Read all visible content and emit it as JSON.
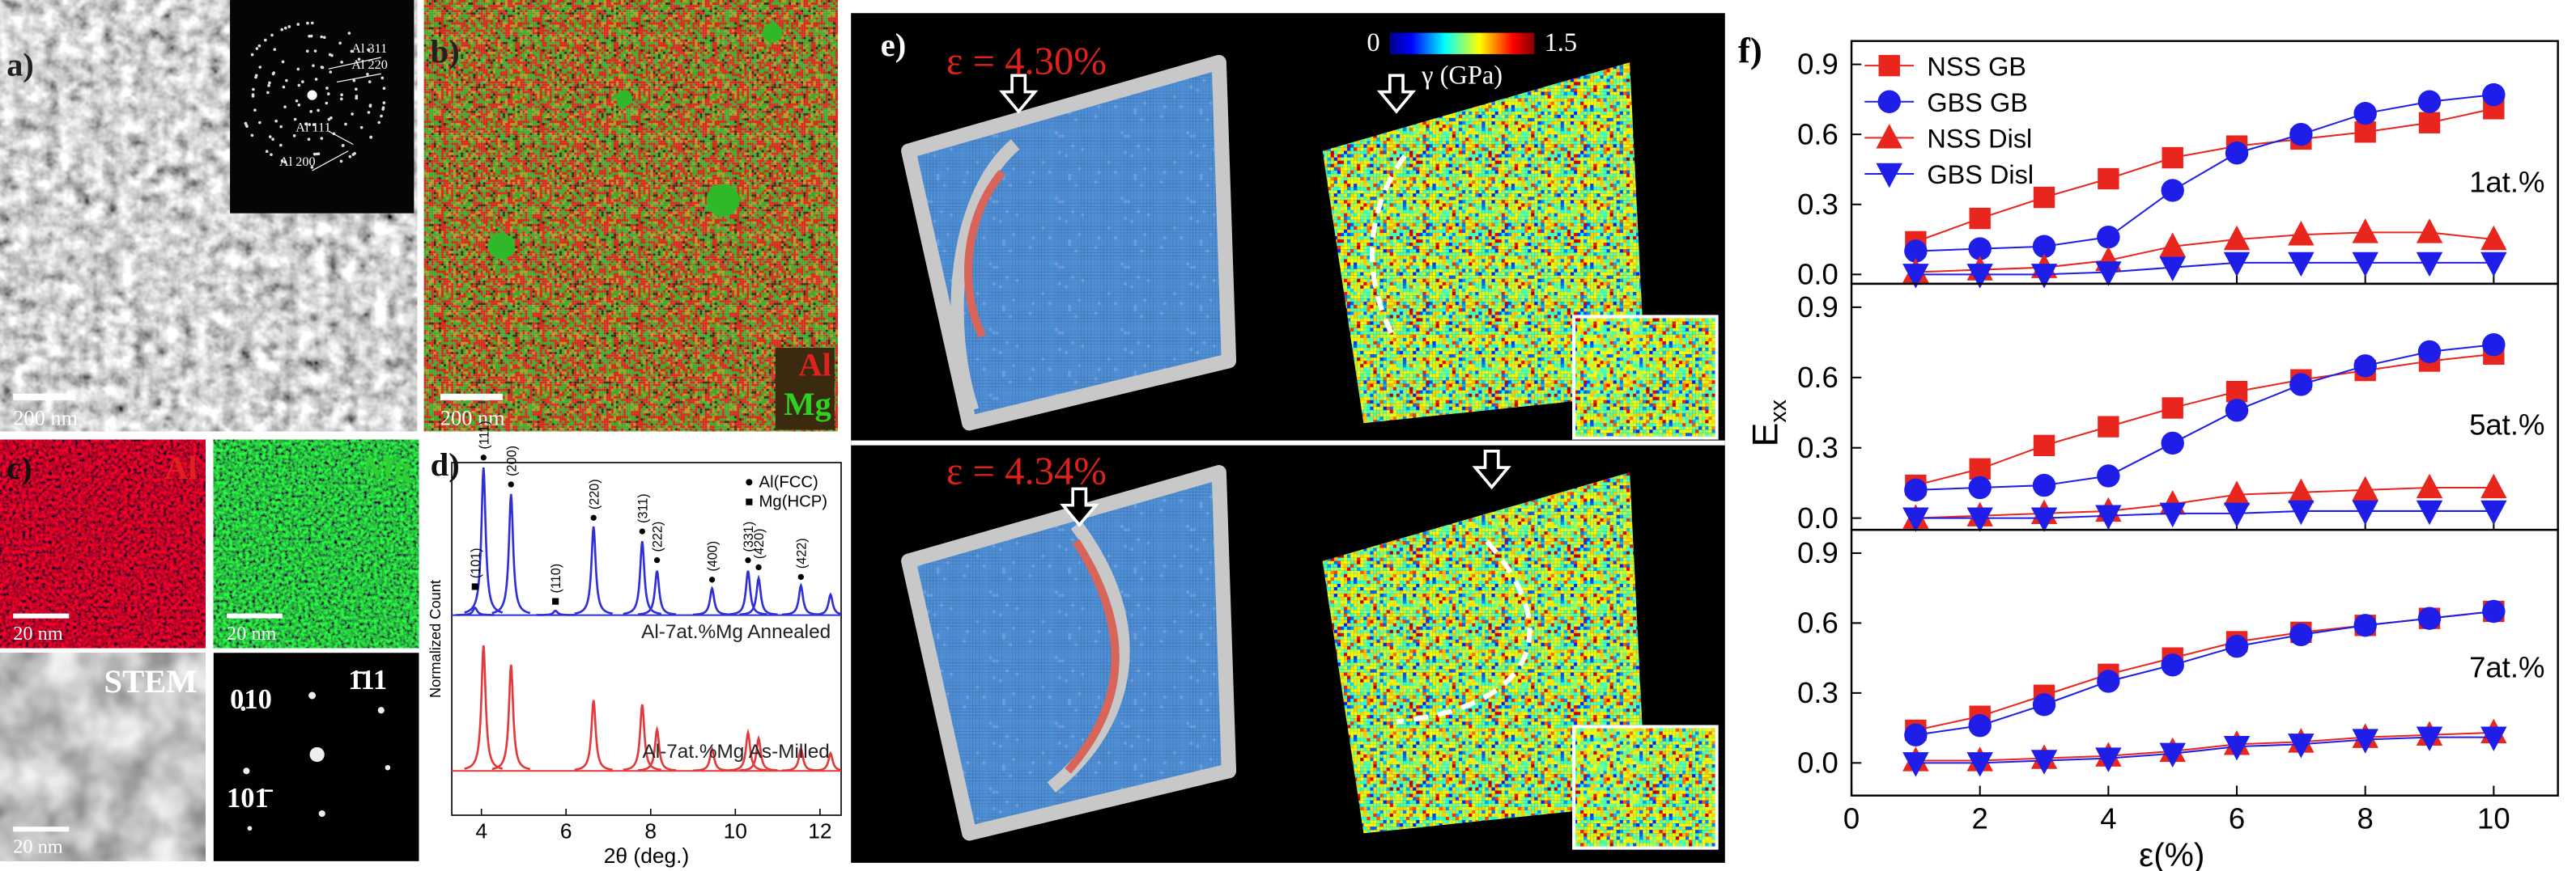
{
  "figure": {
    "a": {
      "label": "a)",
      "scale_bar": "200 nm",
      "inset_labels": [
        "Al 311",
        "Al 220",
        "Al 111",
        "Al 200"
      ]
    },
    "b": {
      "label": "b)",
      "scale_bar": "200 nm",
      "elements": [
        "Al",
        "Mg"
      ]
    },
    "c": {
      "label": "c)",
      "tiles": [
        {
          "title": "Al",
          "scale_bar": "20 nm"
        },
        {
          "title": "Mg",
          "scale_bar": "20 nm"
        },
        {
          "title": "STEM",
          "scale_bar": "20 nm"
        }
      ],
      "spots": [
        "010",
        "1̄11",
        "101̄"
      ]
    },
    "d": {
      "label": "d)"
    },
    "e": {
      "label": "e)",
      "strains": [
        "ε = 4.30%",
        "ε = 4.34%"
      ],
      "colorbar": {
        "min": 0,
        "max": 1.5,
        "label": "γ (GPa)"
      }
    },
    "f": {
      "label": "f)"
    }
  },
  "chart_data": [
    {
      "type": "spectrum",
      "xlabel": "2θ (deg.)",
      "ylabel": "Normalized Count",
      "xlim": [
        3.3,
        12.5
      ],
      "xticks": [
        4,
        6,
        8,
        10,
        12
      ],
      "series": [
        {
          "name": "Al-7at.%Mg Annealed",
          "color": "#2f2fd8",
          "x": [
            3.85,
            4.05,
            4.7,
            5.75,
            6.65,
            7.8,
            8.15,
            9.45,
            10.3,
            10.55,
            11.55,
            12.25
          ],
          "values": [
            0.05,
            1.0,
            0.82,
            0.03,
            0.6,
            0.5,
            0.3,
            0.18,
            0.3,
            0.25,
            0.2,
            0.14
          ]
        },
        {
          "name": "Al-7at.%Mg As-Milled",
          "color": "#e23a3a",
          "x": [
            4.05,
            4.7,
            6.65,
            7.8,
            8.15,
            9.45,
            10.3,
            10.55,
            11.55,
            12.25
          ],
          "values": [
            0.85,
            0.72,
            0.48,
            0.45,
            0.28,
            0.15,
            0.26,
            0.22,
            0.15,
            0.12
          ]
        }
      ],
      "markers": [
        {
          "name": "Al(FCC)",
          "labels": [
            "(111)",
            "(200)",
            "(220)",
            "(311)",
            "(222)",
            "(400)",
            "(331)",
            "(420)",
            "(422)"
          ],
          "x": [
            4.05,
            4.7,
            6.65,
            7.8,
            8.15,
            9.45,
            10.3,
            10.55,
            11.55
          ]
        },
        {
          "name": "Mg(HCP)",
          "labels": [
            "(101)",
            "(110)"
          ],
          "x": [
            3.85,
            5.75
          ]
        }
      ]
    },
    {
      "type": "line",
      "annotation": "1at.%",
      "legend": "upper left",
      "xlim": [
        0,
        11
      ],
      "xticks": [
        0,
        2,
        4,
        6,
        8,
        10
      ],
      "ylim": [
        -0.04,
        1.0
      ],
      "yticks": [
        {
          "value": 0,
          "label": "0.0"
        },
        0.3,
        0.6,
        0.9
      ],
      "x": [
        1,
        2,
        3,
        4,
        5,
        6,
        7,
        8,
        9,
        10
      ],
      "series": [
        {
          "name": "NSS GB",
          "color": "#e8261e",
          "marker": "square",
          "values": [
            0.14,
            0.24,
            0.33,
            0.41,
            0.5,
            0.55,
            0.58,
            0.61,
            0.65,
            0.71
          ]
        },
        {
          "name": "GBS GB",
          "color": "#1e1ee8",
          "marker": "circle",
          "values": [
            0.1,
            0.11,
            0.12,
            0.16,
            0.36,
            0.52,
            0.6,
            0.69,
            0.74,
            0.77
          ]
        },
        {
          "name": "NSS Disl",
          "color": "#e8261e",
          "marker": "triangle-up",
          "values": [
            0.01,
            0.02,
            0.03,
            0.06,
            0.12,
            0.15,
            0.17,
            0.18,
            0.18,
            0.15
          ]
        },
        {
          "name": "GBS Disl",
          "color": "#1e1ee8",
          "marker": "triangle-down",
          "values": [
            0.0,
            0.0,
            0.0,
            0.01,
            0.03,
            0.05,
            0.05,
            0.05,
            0.05,
            0.05
          ]
        }
      ]
    },
    {
      "type": "line",
      "annotation": "5at.%",
      "ylabel": {
        "main": "E",
        "sub": "xx"
      },
      "xlim": [
        0,
        11
      ],
      "xticks": [
        0,
        2,
        4,
        6,
        8,
        10
      ],
      "ylim": [
        -0.05,
        1.0
      ],
      "yticks": [
        {
          "value": 0,
          "label": "0.0"
        },
        0.3,
        0.6,
        0.9
      ],
      "x": [
        1,
        2,
        3,
        4,
        5,
        6,
        7,
        8,
        9,
        10
      ],
      "series": [
        {
          "color": "#e8261e",
          "marker": "square",
          "values": [
            0.14,
            0.21,
            0.31,
            0.39,
            0.47,
            0.54,
            0.59,
            0.63,
            0.67,
            0.7
          ]
        },
        {
          "color": "#1e1ee8",
          "marker": "circle",
          "values": [
            0.12,
            0.13,
            0.14,
            0.18,
            0.32,
            0.46,
            0.57,
            0.65,
            0.71,
            0.74
          ]
        },
        {
          "color": "#e8261e",
          "marker": "triangle-up",
          "values": [
            0.0,
            0.01,
            0.02,
            0.03,
            0.06,
            0.1,
            0.11,
            0.12,
            0.13,
            0.13
          ]
        },
        {
          "color": "#1e1ee8",
          "marker": "triangle-down",
          "values": [
            0.0,
            0.0,
            0.0,
            0.01,
            0.02,
            0.02,
            0.03,
            0.03,
            0.03,
            0.03
          ]
        }
      ]
    },
    {
      "type": "line",
      "annotation": "7at.%",
      "xlabel": "ε(%)",
      "xlim": [
        0,
        11
      ],
      "xticks": [
        0,
        2,
        4,
        6,
        8,
        10
      ],
      "ylim": [
        -0.14,
        1.0
      ],
      "yticks": [
        {
          "value": 0,
          "label": "0.0"
        },
        0.3,
        0.6,
        0.9
      ],
      "x": [
        1,
        2,
        3,
        4,
        5,
        6,
        7,
        8,
        9,
        10
      ],
      "series": [
        {
          "color": "#e8261e",
          "marker": "square",
          "values": [
            0.14,
            0.2,
            0.29,
            0.38,
            0.45,
            0.52,
            0.56,
            0.59,
            0.62,
            0.65
          ]
        },
        {
          "color": "#1e1ee8",
          "marker": "circle",
          "values": [
            0.12,
            0.16,
            0.25,
            0.35,
            0.42,
            0.5,
            0.55,
            0.59,
            0.62,
            0.65
          ]
        },
        {
          "color": "#e8261e",
          "marker": "triangle-up",
          "values": [
            0.01,
            0.01,
            0.02,
            0.03,
            0.05,
            0.08,
            0.09,
            0.11,
            0.12,
            0.13
          ]
        },
        {
          "color": "#1e1ee8",
          "marker": "triangle-down",
          "values": [
            0.0,
            0.0,
            0.01,
            0.02,
            0.04,
            0.07,
            0.08,
            0.1,
            0.11,
            0.11
          ]
        }
      ]
    }
  ]
}
